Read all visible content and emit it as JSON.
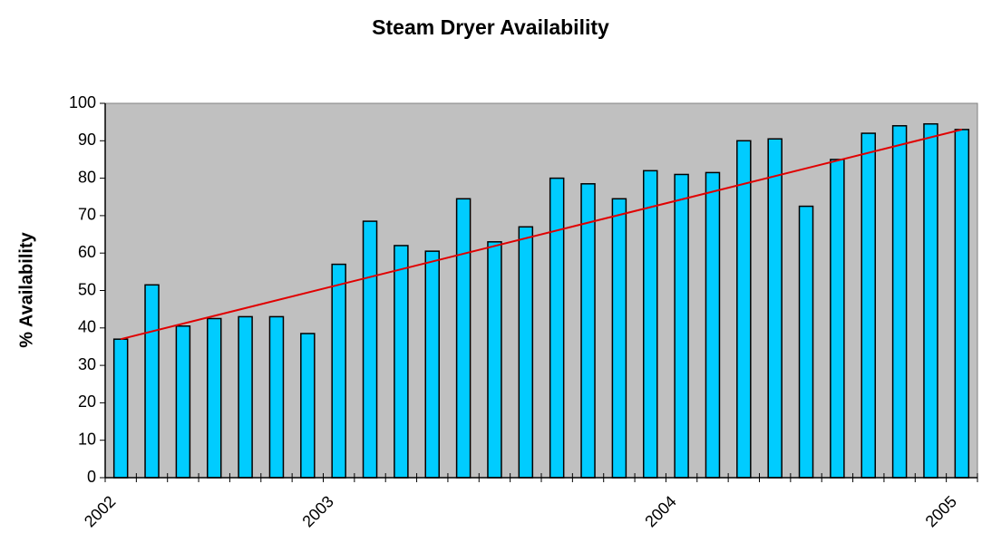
{
  "chart_data": {
    "type": "bar",
    "title": "Steam Dryer Availability",
    "y_label": "% Availability",
    "categories": [
      "2002",
      null,
      null,
      null,
      null,
      null,
      null,
      "2003",
      null,
      null,
      null,
      null,
      null,
      null,
      null,
      null,
      null,
      null,
      "2004",
      null,
      null,
      null,
      null,
      null,
      null,
      null,
      null,
      "2005"
    ],
    "values": [
      37,
      51.5,
      40.5,
      42.5,
      43,
      43,
      38.5,
      57,
      68.5,
      62,
      60.5,
      74.5,
      63,
      67,
      80,
      78.5,
      74.5,
      82,
      81,
      81.5,
      90,
      90.5,
      72.5,
      85,
      92,
      94,
      94.5,
      93
    ],
    "color": "#00ccff",
    "trendline": {
      "color": "#e00000",
      "values": [
        37,
        93
      ]
    },
    "ylim": [
      0,
      100
    ],
    "yticks": [
      0,
      10,
      20,
      30,
      40,
      50,
      60,
      70,
      80,
      90,
      100
    ],
    "plot_background": "#c0c0c0"
  }
}
